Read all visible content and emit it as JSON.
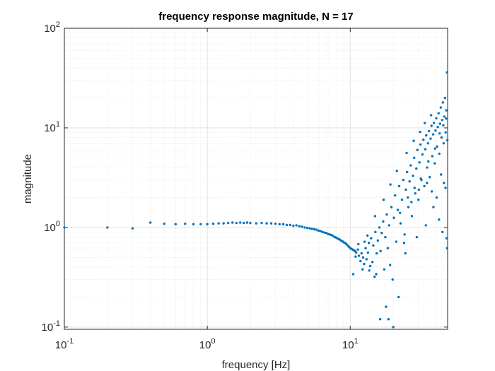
{
  "chart_data": {
    "type": "scatter",
    "title": "frequency response magnitude, N = 17",
    "xlabel": "frequency [Hz]",
    "ylabel": "magnitude",
    "xscale": "log",
    "yscale": "log",
    "xlim": [
      0.1,
      48
    ],
    "ylim": [
      0.095,
      100
    ],
    "xticks": [
      {
        "base": "10",
        "exp": "-1",
        "value": 0.1
      },
      {
        "base": "10",
        "exp": "0",
        "value": 1
      },
      {
        "base": "10",
        "exp": "1",
        "value": 10
      }
    ],
    "yticks": [
      {
        "base": "10",
        "exp": "-1",
        "value": 0.1
      },
      {
        "base": "10",
        "exp": "0",
        "value": 1
      },
      {
        "base": "10",
        "exp": "1",
        "value": 10
      },
      {
        "base": "10",
        "exp": "2",
        "value": 100
      }
    ],
    "grid": true,
    "minor_grid": true,
    "marker_color": "#0072BD",
    "series": [
      {
        "points": [
          [
            0.1,
            1.0
          ],
          [
            0.2,
            1.0
          ],
          [
            0.3,
            0.98
          ],
          [
            0.4,
            1.12
          ],
          [
            0.5,
            1.09
          ],
          [
            0.6,
            1.08
          ],
          [
            0.7,
            1.09
          ],
          [
            0.8,
            1.08
          ],
          [
            0.9,
            1.08
          ],
          [
            1.0,
            1.08
          ],
          [
            1.1,
            1.09
          ],
          [
            1.2,
            1.1
          ],
          [
            1.3,
            1.1
          ],
          [
            1.4,
            1.11
          ],
          [
            1.5,
            1.12
          ],
          [
            1.6,
            1.11
          ],
          [
            1.7,
            1.12
          ],
          [
            1.8,
            1.11
          ],
          [
            1.9,
            1.12
          ],
          [
            2.0,
            1.11
          ],
          [
            2.2,
            1.1
          ],
          [
            2.4,
            1.11
          ],
          [
            2.6,
            1.1
          ],
          [
            2.8,
            1.1
          ],
          [
            3.0,
            1.09
          ],
          [
            3.2,
            1.08
          ],
          [
            3.4,
            1.08
          ],
          [
            3.6,
            1.06
          ],
          [
            3.8,
            1.06
          ],
          [
            4.0,
            1.04
          ],
          [
            4.2,
            1.05
          ],
          [
            4.4,
            1.03
          ],
          [
            4.6,
            1.02
          ],
          [
            4.8,
            1.0
          ],
          [
            5.0,
            0.99
          ],
          [
            5.2,
            0.98
          ],
          [
            5.4,
            0.97
          ],
          [
            5.6,
            0.96
          ],
          [
            5.8,
            0.95
          ],
          [
            6.0,
            0.93
          ],
          [
            6.2,
            0.92
          ],
          [
            6.4,
            0.9
          ],
          [
            6.6,
            0.89
          ],
          [
            6.8,
            0.88
          ],
          [
            7.0,
            0.86
          ],
          [
            7.2,
            0.85
          ],
          [
            7.4,
            0.84
          ],
          [
            7.6,
            0.82
          ],
          [
            7.8,
            0.8
          ],
          [
            8.0,
            0.79
          ],
          [
            8.2,
            0.77
          ],
          [
            8.4,
            0.76
          ],
          [
            8.6,
            0.74
          ],
          [
            8.8,
            0.73
          ],
          [
            9.0,
            0.71
          ],
          [
            9.2,
            0.7
          ],
          [
            9.4,
            0.68
          ],
          [
            9.6,
            0.66
          ],
          [
            9.8,
            0.64
          ],
          [
            10.0,
            0.62
          ],
          [
            10.2,
            0.61
          ],
          [
            10.4,
            0.6
          ],
          [
            10.6,
            0.59
          ],
          [
            10.8,
            0.58
          ],
          [
            11.0,
            0.56
          ],
          [
            11.3,
            0.6
          ],
          [
            11.5,
            0.52
          ],
          [
            11.8,
            0.46
          ],
          [
            12.0,
            0.55
          ],
          [
            12.3,
            0.5
          ],
          [
            12.5,
            0.43
          ],
          [
            12.8,
            0.62
          ],
          [
            13.0,
            0.48
          ],
          [
            13.3,
            0.56
          ],
          [
            13.5,
            0.7
          ],
          [
            13.8,
            0.41
          ],
          [
            14.0,
            0.78
          ],
          [
            14.3,
            0.45
          ],
          [
            14.5,
            0.66
          ],
          [
            14.8,
            0.32
          ],
          [
            15.0,
            0.9
          ],
          [
            15.3,
            0.55
          ],
          [
            15.6,
            0.74
          ],
          [
            16.0,
            1.0
          ],
          [
            16.3,
            0.58
          ],
          [
            16.6,
            0.88
          ],
          [
            17.0,
            1.15
          ],
          [
            17.3,
            0.38
          ],
          [
            17.6,
            0.8
          ],
          [
            18.0,
            1.35
          ],
          [
            18.3,
            0.62
          ],
          [
            18.7,
            1.05
          ],
          [
            19.0,
            0.42
          ],
          [
            19.4,
            1.6
          ],
          [
            19.8,
            0.3
          ],
          [
            20.2,
            1.25
          ],
          [
            20.6,
            2.1
          ],
          [
            21.0,
            0.72
          ],
          [
            21.5,
            1.5
          ],
          [
            22.0,
            2.6
          ],
          [
            22.5,
            1.1
          ],
          [
            23.0,
            1.9
          ],
          [
            23.5,
            3.0
          ],
          [
            24.0,
            0.85
          ],
          [
            24.5,
            2.4
          ],
          [
            25.0,
            3.6
          ],
          [
            25.5,
            1.6
          ],
          [
            26.0,
            2.9
          ],
          [
            26.5,
            4.2
          ],
          [
            27.0,
            1.3
          ],
          [
            27.5,
            3.3
          ],
          [
            28.0,
            5.0
          ],
          [
            28.5,
            2.2
          ],
          [
            29.0,
            3.9
          ],
          [
            29.5,
            6.0
          ],
          [
            30.0,
            1.9
          ],
          [
            30.5,
            4.5
          ],
          [
            31.0,
            6.8
          ],
          [
            31.5,
            3.0
          ],
          [
            32.0,
            5.4
          ],
          [
            32.5,
            7.6
          ],
          [
            33.0,
            2.6
          ],
          [
            33.5,
            6.1
          ],
          [
            34.0,
            8.4
          ],
          [
            34.5,
            4.0
          ],
          [
            35.0,
            7.0
          ],
          [
            35.5,
            9.3
          ],
          [
            36.0,
            3.2
          ],
          [
            36.5,
            7.8
          ],
          [
            37.0,
            10.5
          ],
          [
            37.5,
            5.2
          ],
          [
            38.0,
            8.6
          ],
          [
            38.5,
            11.2
          ],
          [
            39.0,
            4.4
          ],
          [
            39.5,
            9.4
          ],
          [
            40.0,
            12.5
          ],
          [
            40.5,
            6.5
          ],
          [
            41.0,
            10.2
          ],
          [
            41.5,
            14.0
          ],
          [
            42.0,
            5.5
          ],
          [
            42.5,
            11.0
          ],
          [
            43.0,
            16.0
          ],
          [
            43.5,
            8.0
          ],
          [
            44.0,
            12.0
          ],
          [
            44.5,
            18.0
          ],
          [
            45.0,
            7.0
          ],
          [
            45.5,
            13.0
          ],
          [
            46.0,
            20.0
          ],
          [
            46.5,
            9.0
          ],
          [
            47.0,
            15.0
          ],
          [
            47.5,
            36.0
          ],
          [
            12.2,
            0.38
          ],
          [
            13.6,
            0.37
          ],
          [
            15.2,
            0.34
          ],
          [
            16.2,
            0.12
          ],
          [
            17.8,
            0.16
          ],
          [
            18.5,
            0.12
          ],
          [
            20.0,
            0.1
          ],
          [
            21.8,
            0.2
          ],
          [
            24.3,
            0.55
          ],
          [
            29.2,
            0.8
          ],
          [
            33.8,
            1.05
          ],
          [
            38.2,
            1.6
          ],
          [
            41.8,
            1.2
          ],
          [
            44.2,
            0.9
          ],
          [
            47.2,
            0.78
          ],
          [
            47.6,
            0.62
          ],
          [
            46.4,
            2.5
          ],
          [
            45.2,
            2.8
          ],
          [
            43.2,
            3.4
          ],
          [
            40.2,
            2.0
          ],
          [
            37.2,
            2.3
          ],
          [
            34.4,
            2.8
          ],
          [
            31.2,
            3.1
          ],
          [
            28.2,
            2.5
          ],
          [
            25.3,
            2.0
          ],
          [
            22.3,
            1.4
          ],
          [
            23.8,
            0.7
          ],
          [
            26.8,
            1.8
          ],
          [
            30.2,
            2.4
          ],
          [
            35.2,
            4.6
          ],
          [
            39.2,
            6.2
          ],
          [
            42.2,
            8.8
          ],
          [
            44.8,
            10.6
          ],
          [
            46.8,
            12.4
          ],
          [
            47.8,
            7.5
          ],
          [
            36.8,
            13.4
          ],
          [
            33.2,
            11.2
          ],
          [
            30.8,
            9.1
          ],
          [
            27.8,
            7.4
          ],
          [
            24.8,
            5.6
          ],
          [
            21.2,
            3.7
          ],
          [
            19.1,
            2.7
          ],
          [
            17.1,
            1.9
          ],
          [
            14.9,
            1.3
          ],
          [
            13.2,
            0.83
          ],
          [
            12.6,
            0.72
          ],
          [
            11.4,
            0.68
          ],
          [
            10.9,
            0.51
          ],
          [
            10.5,
            0.34
          ]
        ]
      }
    ]
  }
}
